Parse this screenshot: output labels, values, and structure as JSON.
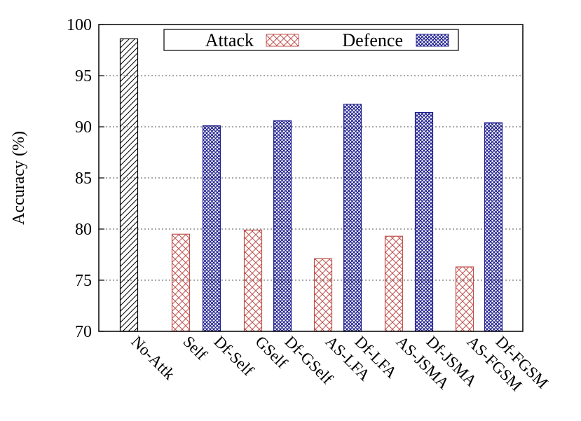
{
  "chart_data": {
    "type": "bar",
    "title": "",
    "xlabel": "",
    "ylabel": "Accuracy (%)",
    "ylim": [
      70,
      100
    ],
    "yticks": [
      70,
      75,
      80,
      85,
      90,
      95,
      100
    ],
    "grid": true,
    "legend_position": "top",
    "bars": [
      {
        "label": "No-Attk",
        "value": 98.6,
        "series": "baseline"
      },
      {
        "label": "Self",
        "value": 79.5,
        "series": "attack"
      },
      {
        "label": "Df-Self",
        "value": 90.1,
        "series": "defence"
      },
      {
        "label": "GSelf",
        "value": 79.9,
        "series": "attack"
      },
      {
        "label": "Df-GSelf",
        "value": 90.6,
        "series": "defence"
      },
      {
        "label": "AS-LFA",
        "value": 77.1,
        "series": "attack"
      },
      {
        "label": "Df-LFA",
        "value": 92.2,
        "series": "defence"
      },
      {
        "label": "AS-JSMA",
        "value": 79.3,
        "series": "attack"
      },
      {
        "label": "Df-JSMA",
        "value": 91.4,
        "series": "defence"
      },
      {
        "label": "AS-FGSM",
        "value": 76.3,
        "series": "attack"
      },
      {
        "label": "Df-FGSM",
        "value": 90.4,
        "series": "defence"
      }
    ],
    "legend": [
      {
        "name": "Attack",
        "series": "attack"
      },
      {
        "name": "Defence",
        "series": "defence"
      }
    ],
    "colors": {
      "baseline": "#000000",
      "attack": "#c0504d",
      "defence": "#1f1f8f"
    }
  }
}
